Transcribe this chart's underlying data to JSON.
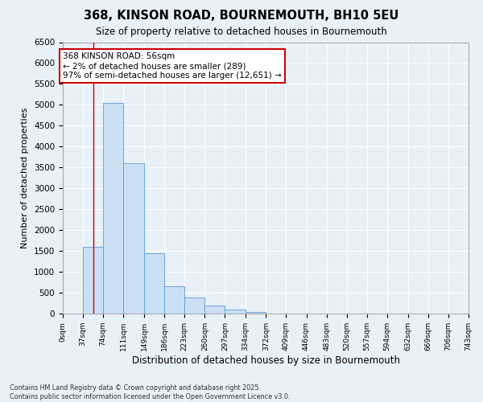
{
  "title_line1": "368, KINSON ROAD, BOURNEMOUTH, BH10 5EU",
  "title_line2": "Size of property relative to detached houses in Bournemouth",
  "xlabel": "Distribution of detached houses by size in Bournemouth",
  "ylabel": "Number of detached properties",
  "bin_edges": [
    0,
    37,
    74,
    111,
    149,
    186,
    223,
    260,
    297,
    334,
    372,
    409,
    446,
    483,
    520,
    557,
    594,
    632,
    669,
    706,
    743
  ],
  "bin_counts": [
    5,
    1600,
    5050,
    3600,
    1450,
    650,
    390,
    190,
    100,
    30,
    5,
    3,
    2,
    1,
    1,
    1,
    1,
    1,
    1,
    1
  ],
  "bar_color": "#cce0f5",
  "bar_edge_color": "#5b9bd5",
  "vline_x": 56,
  "vline_color": "#cc0000",
  "ylim": [
    0,
    6500
  ],
  "yticks": [
    0,
    500,
    1000,
    1500,
    2000,
    2500,
    3000,
    3500,
    4000,
    4500,
    5000,
    5500,
    6000,
    6500
  ],
  "annotation_text": "368 KINSON ROAD: 56sqm\n← 2% of detached houses are smaller (289)\n97% of semi-detached houses are larger (12,651) →",
  "annotation_box_color": "#ffffff",
  "annotation_border_color": "#cc0000",
  "footnote": "Contains HM Land Registry data © Crown copyright and database right 2025.\nContains public sector information licensed under the Open Government Licence v3.0.",
  "bg_color": "#e8f0f8",
  "plot_bg_color": "#e8f0f8",
  "grid_color": "#ffffff",
  "tick_labels": [
    "0sqm",
    "37sqm",
    "74sqm",
    "111sqm",
    "149sqm",
    "186sqm",
    "223sqm",
    "260sqm",
    "297sqm",
    "334sqm",
    "372sqm",
    "409sqm",
    "446sqm",
    "483sqm",
    "520sqm",
    "557sqm",
    "594sqm",
    "632sqm",
    "669sqm",
    "706sqm",
    "743sqm"
  ]
}
